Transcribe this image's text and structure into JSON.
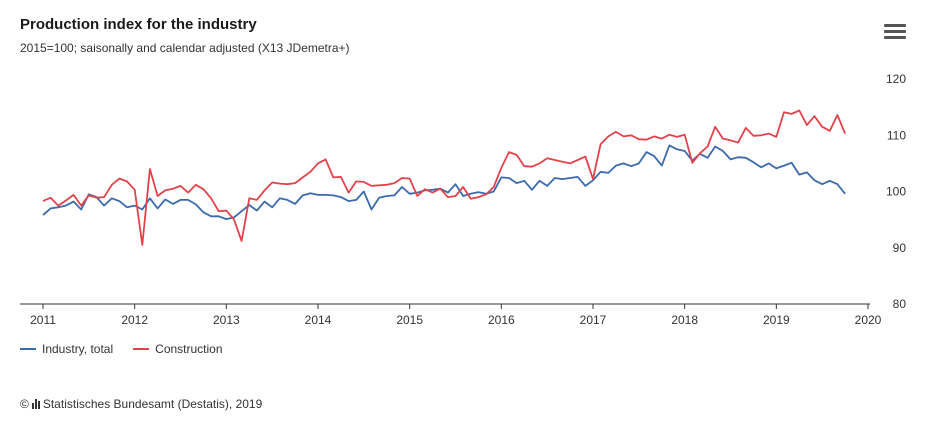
{
  "header": {
    "title": "Production index for the industry",
    "subtitle": "2015=100; saisonally and calendar adjusted (X13 JDemetra+)"
  },
  "menu": {
    "icon": "hamburger-menu-icon"
  },
  "legend": {
    "items": [
      {
        "label": "Industry, total",
        "color": "#3b6aad"
      },
      {
        "label": "Construction",
        "color": "#e2434b"
      }
    ]
  },
  "source": {
    "copyright": "©",
    "text": "Statistisches Bundesamt (Destatis), 2019",
    "icon": "destatis-logo-icon"
  },
  "colors": {
    "industry": "#3b6aad",
    "construction": "#e2434b",
    "axis": "#333333"
  },
  "chart_data": {
    "type": "line",
    "title": "Production index for the industry",
    "subtitle": "2015=100; saisonally and calendar adjusted (X13 JDemetra+)",
    "x_start": "2011-01",
    "x_frequency": "monthly",
    "x_ticks": [
      "2011",
      "2012",
      "2013",
      "2014",
      "2015",
      "2016",
      "2017",
      "2018",
      "2019",
      "2020"
    ],
    "xlim": [
      "2011-01",
      "2020-01"
    ],
    "ylim": [
      80,
      120
    ],
    "y_ticks": [
      80,
      90,
      100,
      110,
      120
    ],
    "y_axis_position": "right",
    "grid": false,
    "legend_position": "bottom-left",
    "series": [
      {
        "name": "Industry, total",
        "color": "#3b6aad",
        "values": [
          95.8,
          97.0,
          97.2,
          97.5,
          98.2,
          96.8,
          99.5,
          99.0,
          97.5,
          98.8,
          98.3,
          97.2,
          97.5,
          96.8,
          98.8,
          97.0,
          98.6,
          97.8,
          98.5,
          98.5,
          97.7,
          96.3,
          95.6,
          95.6,
          95.1,
          95.4,
          96.5,
          97.6,
          96.6,
          98.2,
          97.2,
          98.8,
          98.5,
          97.8,
          99.3,
          99.7,
          99.4,
          99.4,
          99.3,
          99.0,
          98.3,
          98.5,
          100.0,
          96.8,
          98.9,
          99.2,
          99.3,
          100.8,
          99.6,
          99.8,
          100.2,
          100.3,
          100.5,
          99.8,
          101.3,
          99.2,
          99.6,
          99.9,
          99.6,
          100.0,
          102.5,
          102.4,
          101.5,
          101.9,
          100.3,
          101.9,
          101.0,
          102.4,
          102.2,
          102.4,
          102.6,
          101.0,
          102.0,
          103.5,
          103.3,
          104.6,
          105.0,
          104.5,
          105.0,
          107.0,
          106.3,
          104.6,
          108.2,
          107.5,
          107.2,
          105.5,
          106.7,
          106.0,
          108.0,
          107.2,
          105.7,
          106.1,
          106.0,
          105.2,
          104.3,
          105.0,
          104.1,
          104.6,
          105.1,
          103.0,
          103.4,
          102.0,
          101.3,
          101.9,
          101.3,
          99.6
        ]
      },
      {
        "name": "Construction",
        "color": "#e2434b",
        "values": [
          98.3,
          98.9,
          97.5,
          98.4,
          99.4,
          97.5,
          99.3,
          98.9,
          99.0,
          101.2,
          102.3,
          101.8,
          100.3,
          90.5,
          104.0,
          99.2,
          100.2,
          100.5,
          101.0,
          99.8,
          101.2,
          100.4,
          98.8,
          96.5,
          96.6,
          95.0,
          91.2,
          98.8,
          98.5,
          100.2,
          101.6,
          101.4,
          101.3,
          101.5,
          102.5,
          103.5,
          105.0,
          105.7,
          102.5,
          102.6,
          99.8,
          101.8,
          101.7,
          101.0,
          101.1,
          101.2,
          101.5,
          102.4,
          102.3,
          99.2,
          100.4,
          99.8,
          100.5,
          99.0,
          99.2,
          100.8,
          98.7,
          99.0,
          99.5,
          100.8,
          104.2,
          107.0,
          106.5,
          104.5,
          104.4,
          105.0,
          105.9,
          105.6,
          105.3,
          105.0,
          105.6,
          106.2,
          102.2,
          108.4,
          109.8,
          110.6,
          109.8,
          110.0,
          109.3,
          109.2,
          109.8,
          109.4,
          110.1,
          109.7,
          110.1,
          105.1,
          106.8,
          108.0,
          111.5,
          109.4,
          109.1,
          108.7,
          111.3,
          109.9,
          110.0,
          110.3,
          109.7,
          114.1,
          113.8,
          114.4,
          111.8,
          113.4,
          111.5,
          110.8,
          113.6,
          110.3
        ]
      }
    ]
  }
}
